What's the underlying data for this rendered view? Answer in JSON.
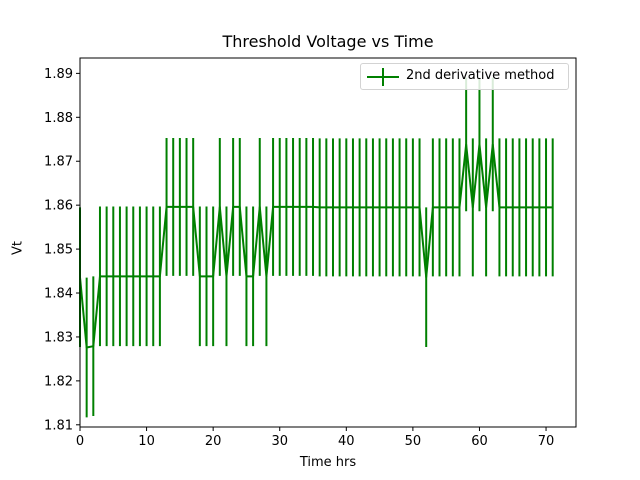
{
  "chart_data": {
    "type": "line",
    "title": "Threshold Voltage vs Time",
    "xlabel": "Time hrs",
    "ylabel": "Vt",
    "xlim": [
      0,
      74.5
    ],
    "ylim": [
      1.8095,
      1.8935
    ],
    "xticks": [
      0,
      10,
      20,
      30,
      40,
      50,
      60,
      70
    ],
    "yticks": [
      1.81,
      1.82,
      1.83,
      1.84,
      1.85,
      1.86,
      1.87,
      1.88,
      1.89
    ],
    "ytick_labels": [
      "1.81",
      "1.82",
      "1.83",
      "1.84",
      "1.85",
      "1.86",
      "1.87",
      "1.88",
      "1.89"
    ],
    "grid": false,
    "legend_position": "top-right",
    "series": [
      {
        "name": "2nd derivative method",
        "color": "#008000",
        "error_bars": true,
        "x": [
          0,
          1,
          2,
          3,
          4,
          5,
          6,
          7,
          8,
          9,
          10,
          11,
          12,
          13,
          14,
          15,
          16,
          17,
          18,
          19,
          20,
          21,
          22,
          23,
          24,
          25,
          26,
          27,
          28,
          29,
          30,
          31,
          32,
          33,
          34,
          35,
          36,
          37,
          38,
          39,
          40,
          41,
          42,
          43,
          44,
          45,
          46,
          47,
          48,
          49,
          50,
          51,
          52,
          53,
          54,
          55,
          56,
          57,
          58,
          59,
          60,
          61,
          62,
          63,
          64,
          65,
          66,
          67,
          68,
          69,
          70,
          71
        ],
        "y": [
          1.8436,
          1.8276,
          1.8279,
          1.8438,
          1.8438,
          1.8438,
          1.8438,
          1.8438,
          1.8438,
          1.8438,
          1.8438,
          1.8438,
          1.8438,
          1.8596,
          1.8596,
          1.8596,
          1.8596,
          1.8596,
          1.8438,
          1.8438,
          1.8438,
          1.8596,
          1.8438,
          1.8596,
          1.8596,
          1.8438,
          1.8438,
          1.8596,
          1.8438,
          1.8596,
          1.8596,
          1.8596,
          1.8596,
          1.8596,
          1.8596,
          1.8596,
          1.8595,
          1.8595,
          1.8595,
          1.8595,
          1.8595,
          1.8595,
          1.8595,
          1.8595,
          1.8595,
          1.8595,
          1.8595,
          1.8595,
          1.8595,
          1.8595,
          1.8595,
          1.8595,
          1.8436,
          1.8595,
          1.8595,
          1.8595,
          1.8595,
          1.8595,
          1.8738,
          1.8595,
          1.8738,
          1.8595,
          1.8738,
          1.8595,
          1.8595,
          1.8595,
          1.8595,
          1.8595,
          1.8595,
          1.8595,
          1.8595,
          1.8595
        ],
        "yerr": [
          0.0159,
          0.0159,
          0.0159,
          0.0159,
          0.0159,
          0.0159,
          0.0159,
          0.0159,
          0.0159,
          0.0159,
          0.0159,
          0.0159,
          0.0159,
          0.0157,
          0.0157,
          0.0157,
          0.0157,
          0.0157,
          0.0159,
          0.0159,
          0.0159,
          0.0157,
          0.0159,
          0.0157,
          0.0157,
          0.0159,
          0.0159,
          0.0157,
          0.0159,
          0.0157,
          0.0157,
          0.0157,
          0.0157,
          0.0157,
          0.0157,
          0.0157,
          0.0157,
          0.0157,
          0.0157,
          0.0157,
          0.0157,
          0.0157,
          0.0157,
          0.0157,
          0.0157,
          0.0157,
          0.0157,
          0.0157,
          0.0157,
          0.0157,
          0.0157,
          0.0157,
          0.0159,
          0.0157,
          0.0157,
          0.0157,
          0.0157,
          0.0157,
          0.0152,
          0.0157,
          0.0152,
          0.0157,
          0.0152,
          0.0157,
          0.0157,
          0.0157,
          0.0157,
          0.0157,
          0.0157,
          0.0157,
          0.0157,
          0.0157
        ]
      }
    ]
  }
}
